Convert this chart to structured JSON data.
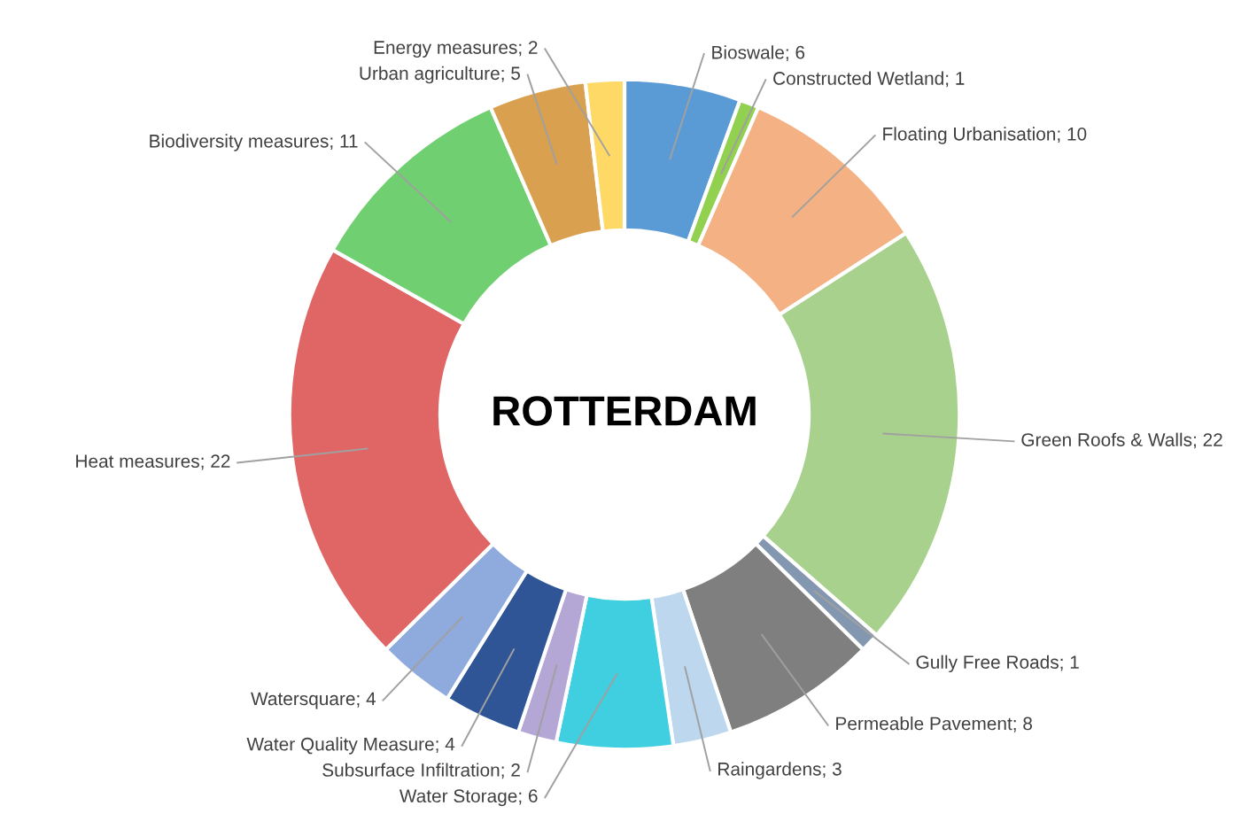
{
  "chart_data": {
    "type": "donut",
    "title": "ROTTERDAM",
    "categories": [
      "Bioswale; 6",
      "Constructed Wetland; 1",
      "Floating Urbanisation; 10",
      "Green Roofs & Walls; 22",
      "Gully Free Roads; 1",
      "Permeable Pavement; 8",
      "Raingardens; 3",
      "Water Storage; 6",
      "Subsurface Infiltration; 2",
      "Water Quality Measure; 4",
      "Watersquare; 4",
      "Heat measures; 22",
      "Biodiversity measures; 11",
      "Urban agriculture; 5",
      "Energy measures; 2"
    ],
    "values": [
      6,
      1,
      10,
      22,
      1,
      8,
      3,
      6,
      2,
      4,
      4,
      22,
      11,
      5,
      2
    ],
    "colors": [
      "#5b9bd5",
      "#92d050",
      "#f4b183",
      "#a9d18e",
      "#8497b0",
      "#7f7f7f",
      "#bdd7ee",
      "#3fcfe0",
      "#b4a7d6",
      "#2f5597",
      "#8faadc",
      "#e06666",
      "#70cf70",
      "#d9a050",
      "#ffd966"
    ],
    "legend": false
  }
}
